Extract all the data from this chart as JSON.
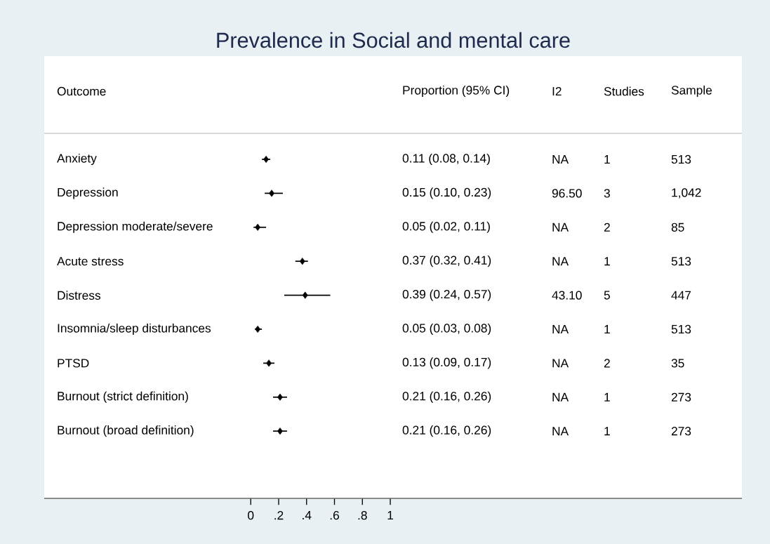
{
  "chart_data": {
    "type": "scatter",
    "orientation": "horizontal",
    "title": "Prevalence in Social and mental care",
    "ylabel": "Outcome",
    "categories": [
      "Anxiety",
      "Depression",
      "Depression moderate/severe",
      "Acute stress",
      "Distress",
      "Insomnia/sleep disturbances",
      "PTSD",
      "Burnout (strict definition)",
      "Burnout (broad definition)"
    ],
    "values": [
      0.11,
      0.15,
      0.05,
      0.37,
      0.39,
      0.05,
      0.13,
      0.21,
      0.21
    ],
    "errors": [
      [
        0.08,
        0.14
      ],
      [
        0.1,
        0.23
      ],
      [
        0.02,
        0.11
      ],
      [
        0.32,
        0.41
      ],
      [
        0.24,
        0.57
      ],
      [
        0.03,
        0.08
      ],
      [
        0.09,
        0.17
      ],
      [
        0.16,
        0.26
      ],
      [
        0.16,
        0.26
      ]
    ],
    "color": "#000000",
    "marker": "diamond",
    "xlim": [
      -1.48,
      3.52
    ],
    "xticks": [
      0,
      {
        "value": 0.2,
        "label": ".2"
      },
      {
        "value": 0.4,
        "label": ".4"
      },
      {
        "value": 0.6,
        "label": ".6"
      },
      {
        "value": 0.8,
        "label": ".8"
      },
      1
    ],
    "annotations": [
      "Proportion (95% CI)",
      "I2",
      "Studies",
      "Sample",
      "0.11 (0.08, 0.14)",
      "NA",
      "1",
      "513",
      "0.15 (0.10, 0.23)",
      "96.50",
      "3",
      "1,042",
      "0.05 (0.02, 0.11)",
      "NA",
      "2",
      "85",
      "0.37 (0.32, 0.41)",
      "NA",
      "1",
      "513",
      "0.39 (0.24, 0.57)",
      "43.10",
      "5",
      "447",
      "0.05 (0.03, 0.08)",
      "NA",
      "1",
      "513",
      "0.13 (0.09, 0.17)",
      "NA",
      "2",
      "35",
      "0.21 (0.16, 0.26)",
      "NA",
      "1",
      "273",
      "0.21 (0.16, 0.26)",
      "NA",
      "1",
      "273"
    ]
  }
}
